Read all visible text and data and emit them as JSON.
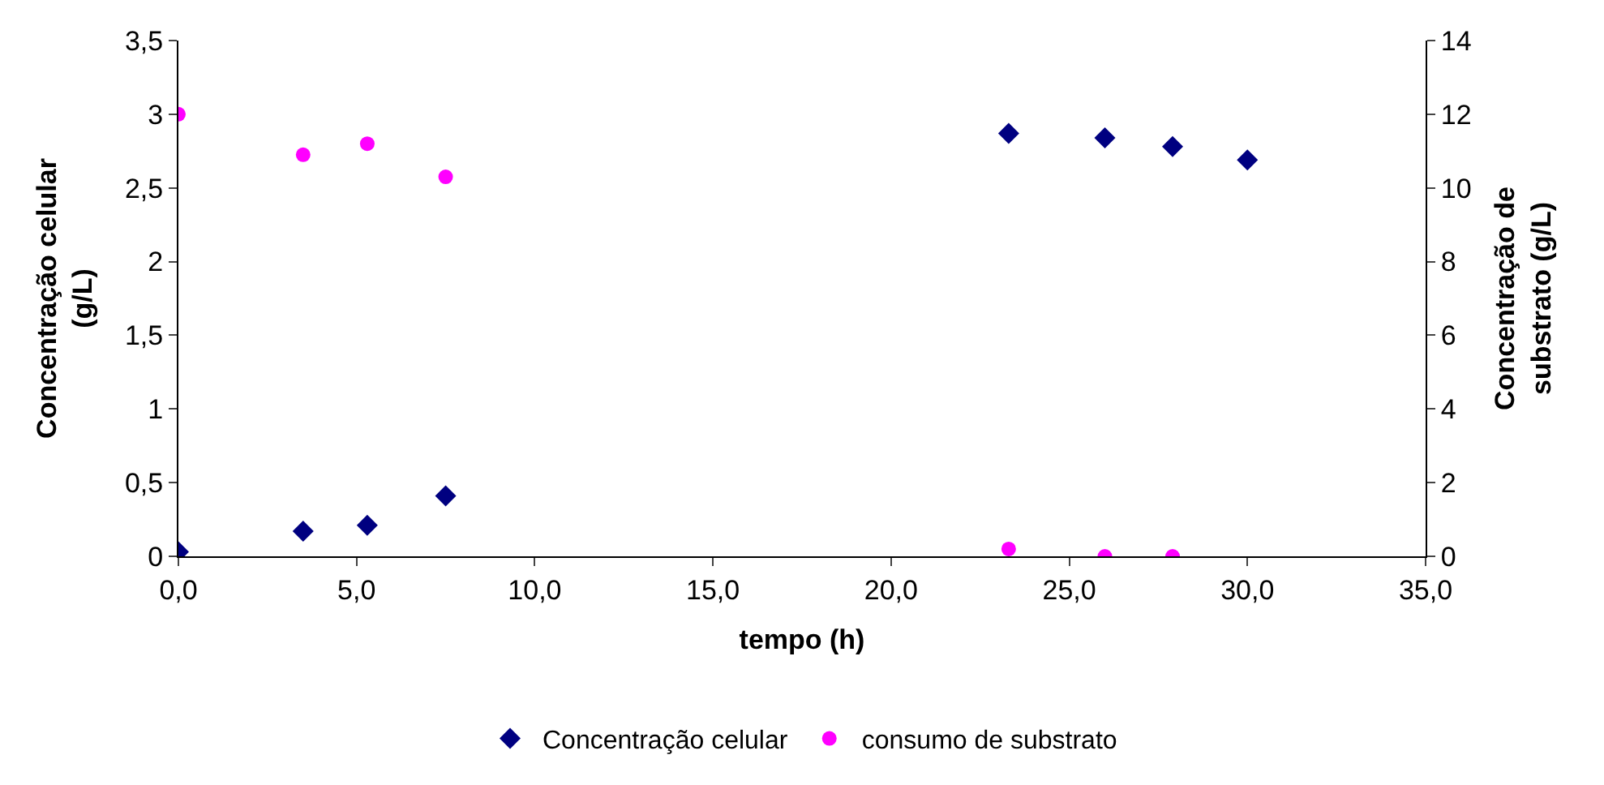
{
  "chart_data": {
    "type": "scatter",
    "xlabel": "tempo (h)",
    "ylabel": "Concentração celular (g/L)",
    "y2label": "Concentração de substrato (g/L)",
    "xlim": [
      0,
      35
    ],
    "xticks": [
      {
        "value": 0,
        "label": "0,0"
      },
      {
        "value": 5,
        "label": "5,0"
      },
      {
        "value": 10,
        "label": "10,0"
      },
      {
        "value": 15,
        "label": "15,0"
      },
      {
        "value": 20,
        "label": "20,0"
      },
      {
        "value": 25,
        "label": "25,0"
      },
      {
        "value": 30,
        "label": "30,0"
      },
      {
        "value": 35,
        "label": "35,0"
      }
    ],
    "ylim": [
      0,
      3.5
    ],
    "yticks": [
      0,
      {
        "value": 0.5,
        "label": "0,5"
      },
      1,
      {
        "value": 1.5,
        "label": "1,5"
      },
      2,
      {
        "value": 2.5,
        "label": "2,5"
      },
      3,
      {
        "value": 3.5,
        "label": "3,5"
      }
    ],
    "y2lim": [
      0,
      14
    ],
    "y2ticks": [
      0,
      2,
      4,
      6,
      8,
      10,
      12,
      14
    ],
    "legend": "bottom",
    "series": [
      {
        "name": "Concentração celular",
        "color": "#000080",
        "marker": "diamond",
        "x": [
          0,
          3.5,
          5.3,
          7.5,
          23.3,
          26.0,
          27.9,
          30.0
        ],
        "values": [
          0.03,
          0.17,
          0.21,
          0.41,
          2.87,
          2.84,
          2.78,
          2.69
        ]
      },
      {
        "name": "consumo de substrato",
        "color": "#ff00ff",
        "marker": "circle",
        "axis": "y2",
        "x": [
          0,
          3.5,
          5.3,
          7.5,
          23.3,
          26.0,
          27.9
        ],
        "values": [
          12.0,
          10.9,
          11.2,
          10.3,
          0.2,
          0.0,
          0.0
        ]
      }
    ]
  }
}
